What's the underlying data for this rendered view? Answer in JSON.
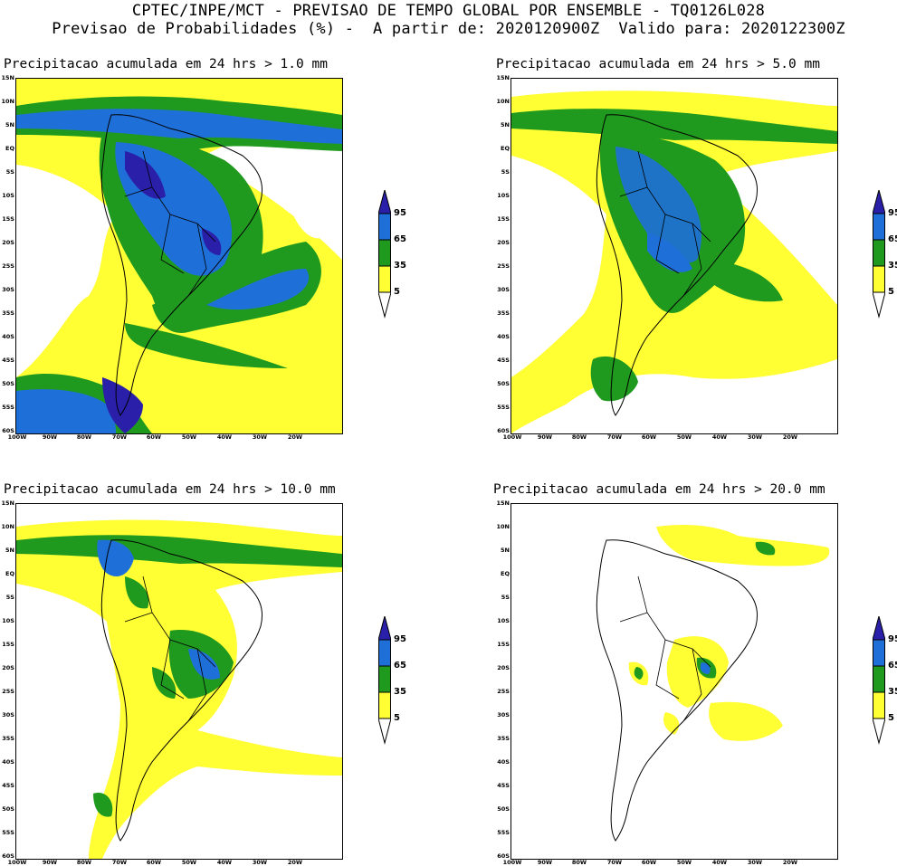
{
  "header": {
    "line1": "CPTEC/INPE/MCT - PREVISAO DE TEMPO GLOBAL POR ENSEMBLE - TQ0126L028",
    "line2": "Previsao de Probabilidades (%) -  A partir de: 2020120900Z  Valido para: 2020122300Z"
  },
  "panels": [
    {
      "title": "Precipitacao acumulada em 24 hrs > 1.0 mm"
    },
    {
      "title": "Precipitacao acumulada em 24 hrs > 5.0 mm"
    },
    {
      "title": "Precipitacao acumulada em 24 hrs > 10.0 mm"
    },
    {
      "title": "Precipitacao acumulada em 24 hrs > 20.0 mm"
    }
  ],
  "lat_labels": [
    "15N",
    "10N",
    "5N",
    "EQ",
    "5S",
    "10S",
    "15S",
    "20S",
    "25S",
    "30S",
    "35S",
    "40S",
    "45S",
    "50S",
    "55S",
    "60S"
  ],
  "lon_labels": [
    "100W",
    "90W",
    "80W",
    "70W",
    "60W",
    "50W",
    "40W",
    "30W",
    "20W"
  ],
  "colorbar": {
    "labels": [
      "95",
      "65",
      "35",
      "5"
    ],
    "colors": {
      "c5": "#ffff33",
      "c35": "#1f9a1f",
      "c65": "#1f6fd8",
      "c95": "#2a1fa8"
    }
  }
}
